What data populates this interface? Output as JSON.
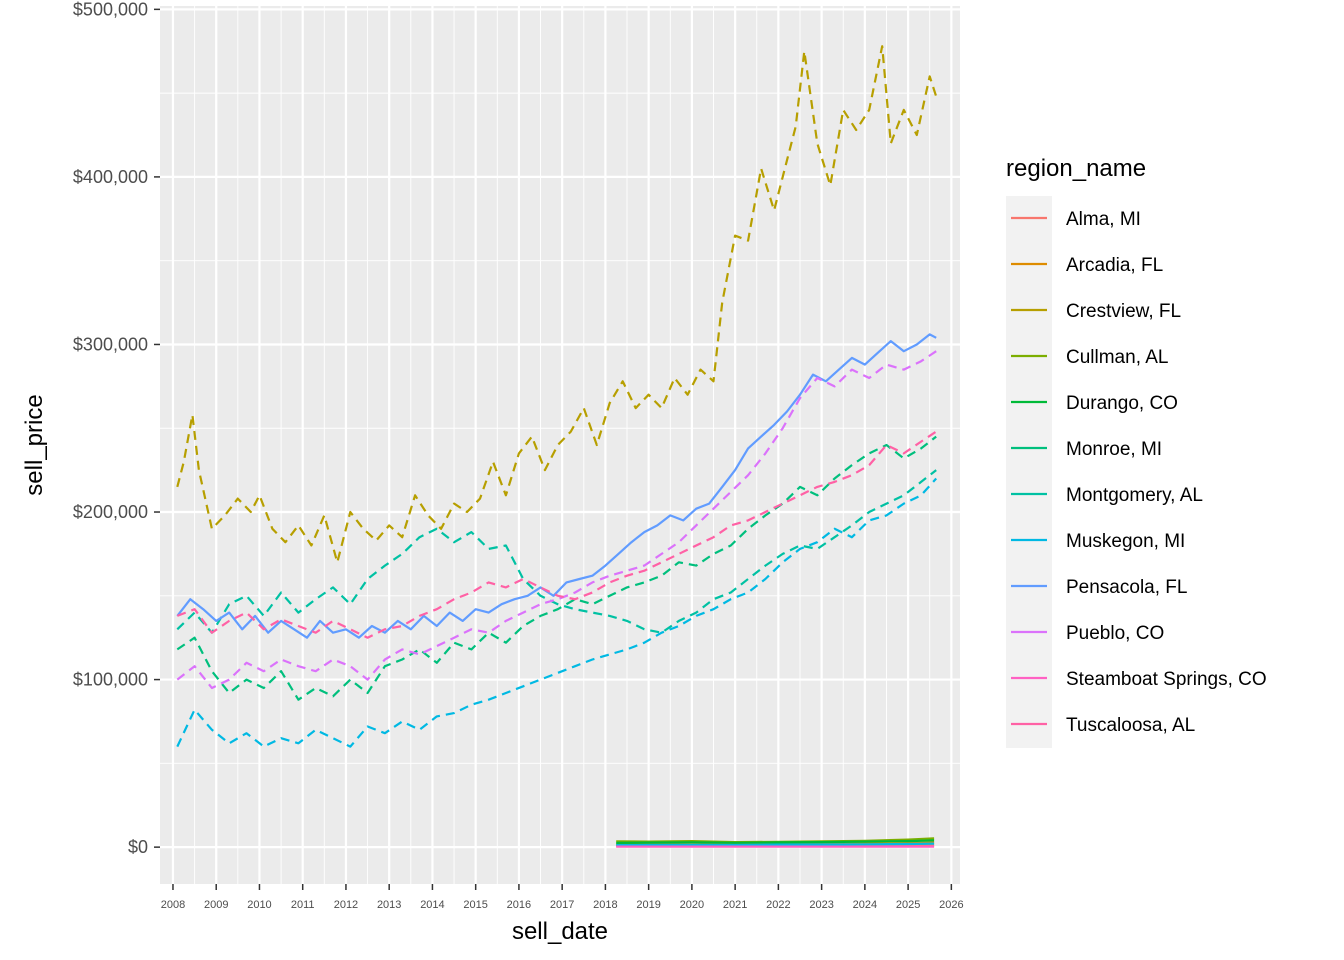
{
  "chart_data": {
    "type": "line",
    "xlabel": "sell_date",
    "ylabel": "sell_price",
    "xlim": [
      2007.7,
      2026.2
    ],
    "ylim": [
      -22000,
      502000
    ],
    "x_ticks": [
      2008,
      2009,
      2010,
      2011,
      2012,
      2013,
      2014,
      2015,
      2016,
      2017,
      2018,
      2019,
      2020,
      2021,
      2022,
      2023,
      2024,
      2025,
      2026
    ],
    "y_ticks": [
      0,
      100000,
      200000,
      300000,
      400000,
      500000
    ],
    "y_tick_labels": [
      "$0",
      "$100,000",
      "$200,000",
      "$300,000",
      "$400,000",
      "$500,000"
    ],
    "grid": true,
    "legend": {
      "title": "region_name",
      "position": "right"
    },
    "series": [
      {
        "name": "Alma, MI",
        "color": "#F8766D",
        "dash": false,
        "x": [
          2018.25,
          2019,
          2020,
          2021,
          2022,
          2023,
          2024,
          2025,
          2025.6
        ],
        "y": [
          600,
          600,
          700,
          700,
          800,
          800,
          900,
          900,
          1000
        ]
      },
      {
        "name": "Arcadia, FL",
        "color": "#DE8C00",
        "dash": false,
        "x": [
          2018.25,
          2019,
          2020,
          2021,
          2022,
          2023,
          2024,
          2025,
          2025.6
        ],
        "y": [
          1500,
          1600,
          1700,
          1600,
          1800,
          1900,
          2100,
          2400,
          2700
        ]
      },
      {
        "name": "Crestview, FL",
        "color": "#B79F00",
        "dash": true,
        "x": [
          2008.1,
          2008.25,
          2008.45,
          2008.6,
          2008.9,
          2009.2,
          2009.5,
          2009.8,
          2010.0,
          2010.3,
          2010.6,
          2010.9,
          2011.2,
          2011.5,
          2011.8,
          2012.1,
          2012.4,
          2012.7,
          2013.0,
          2013.3,
          2013.6,
          2013.9,
          2014.2,
          2014.5,
          2014.8,
          2015.1,
          2015.4,
          2015.7,
          2016.0,
          2016.3,
          2016.6,
          2016.9,
          2017.2,
          2017.5,
          2017.8,
          2018.1,
          2018.4,
          2018.7,
          2019.0,
          2019.3,
          2019.6,
          2019.9,
          2020.2,
          2020.5,
          2020.7,
          2021.0,
          2021.3,
          2021.6,
          2021.9,
          2022.2,
          2022.4,
          2022.6,
          2022.9,
          2023.2,
          2023.5,
          2023.8,
          2024.1,
          2024.4,
          2024.6,
          2024.9,
          2025.2,
          2025.5,
          2025.65
        ],
        "y": [
          215000,
          230000,
          258000,
          225000,
          190000,
          198000,
          208000,
          200000,
          210000,
          190000,
          182000,
          192000,
          180000,
          198000,
          170000,
          200000,
          190000,
          183000,
          192000,
          185000,
          210000,
          198000,
          190000,
          205000,
          200000,
          208000,
          230000,
          210000,
          235000,
          245000,
          225000,
          240000,
          248000,
          262000,
          240000,
          265000,
          278000,
          262000,
          270000,
          262000,
          280000,
          270000,
          285000,
          278000,
          325000,
          365000,
          362000,
          405000,
          380000,
          410000,
          430000,
          475000,
          420000,
          395000,
          440000,
          428000,
          440000,
          478000,
          420000,
          440000,
          425000,
          460000,
          448000
        ]
      },
      {
        "name": "Cullman, AL",
        "color": "#7CAE00",
        "dash": false,
        "x": [
          2018.25,
          2019,
          2020,
          2021,
          2022,
          2023,
          2024,
          2025,
          2025.6
        ],
        "y": [
          3500,
          3300,
          3600,
          3000,
          3200,
          3400,
          3800,
          4500,
          5200
        ]
      },
      {
        "name": "Durango, CO",
        "color": "#00BA38",
        "dash": false,
        "x": [
          2018.25,
          2019,
          2020,
          2021,
          2022,
          2023,
          2024,
          2025,
          2025.6
        ],
        "y": [
          2500,
          2700,
          2900,
          2600,
          2800,
          3000,
          3300,
          3600,
          4000
        ]
      },
      {
        "name": "Monroe, MI",
        "color": "#00BF7D",
        "dash": true,
        "x": [
          2008.1,
          2008.5,
          2008.9,
          2009.3,
          2009.7,
          2010.1,
          2010.5,
          2010.9,
          2011.3,
          2011.7,
          2012.1,
          2012.5,
          2012.9,
          2013.3,
          2013.7,
          2014.1,
          2014.5,
          2014.9,
          2015.3,
          2015.7,
          2016.1,
          2016.5,
          2016.9,
          2017.3,
          2017.7,
          2018.1,
          2018.5,
          2018.9,
          2019.3,
          2019.7,
          2020.1,
          2020.5,
          2020.9,
          2021.3,
          2021.7,
          2022.1,
          2022.5,
          2022.9,
          2023.3,
          2023.7,
          2024.1,
          2024.5,
          2024.9,
          2025.3,
          2025.65
        ],
        "y": [
          118000,
          125000,
          105000,
          92000,
          100000,
          95000,
          105000,
          88000,
          95000,
          90000,
          100000,
          92000,
          108000,
          112000,
          118000,
          110000,
          122000,
          118000,
          128000,
          122000,
          132000,
          138000,
          142000,
          148000,
          145000,
          150000,
          155000,
          158000,
          162000,
          170000,
          168000,
          175000,
          180000,
          190000,
          198000,
          205000,
          215000,
          210000,
          220000,
          228000,
          235000,
          240000,
          232000,
          238000,
          245000
        ]
      },
      {
        "name": "Montgomery, AL",
        "color": "#00C1A3",
        "dash": true,
        "x": [
          2008.1,
          2008.5,
          2008.9,
          2009.3,
          2009.7,
          2010.1,
          2010.5,
          2010.9,
          2011.3,
          2011.7,
          2012.1,
          2012.5,
          2012.9,
          2013.3,
          2013.7,
          2014.1,
          2014.5,
          2014.9,
          2015.3,
          2015.7,
          2016.1,
          2016.5,
          2016.9,
          2017.3,
          2017.7,
          2018.1,
          2018.5,
          2018.9,
          2019.3,
          2019.7,
          2020.1,
          2020.5,
          2020.9,
          2021.3,
          2021.7,
          2022.1,
          2022.5,
          2022.9,
          2023.3,
          2023.7,
          2024.1,
          2024.5,
          2024.9,
          2025.3,
          2025.65
        ],
        "y": [
          130000,
          140000,
          128000,
          145000,
          150000,
          138000,
          152000,
          140000,
          148000,
          155000,
          145000,
          160000,
          168000,
          175000,
          185000,
          190000,
          182000,
          188000,
          178000,
          180000,
          160000,
          150000,
          145000,
          142000,
          140000,
          138000,
          135000,
          130000,
          128000,
          135000,
          140000,
          148000,
          152000,
          160000,
          168000,
          175000,
          180000,
          178000,
          185000,
          192000,
          200000,
          205000,
          210000,
          218000,
          225000
        ]
      },
      {
        "name": "Muskegon, MI",
        "color": "#00B9E3",
        "dash": true,
        "x": [
          2008.1,
          2008.5,
          2008.9,
          2009.3,
          2009.7,
          2010.1,
          2010.5,
          2010.9,
          2011.3,
          2011.7,
          2012.1,
          2012.5,
          2012.9,
          2013.3,
          2013.7,
          2014.1,
          2014.5,
          2014.9,
          2015.3,
          2015.7,
          2016.1,
          2016.5,
          2016.9,
          2017.3,
          2017.7,
          2018.1,
          2018.5,
          2018.9,
          2019.3,
          2019.7,
          2020.1,
          2020.5,
          2020.9,
          2021.3,
          2021.7,
          2022.1,
          2022.5,
          2022.9,
          2023.3,
          2023.7,
          2024.1,
          2024.5,
          2024.9,
          2025.3,
          2025.65
        ],
        "y": [
          60000,
          82000,
          70000,
          62000,
          68000,
          60000,
          65000,
          62000,
          70000,
          65000,
          60000,
          72000,
          68000,
          75000,
          70000,
          78000,
          80000,
          85000,
          88000,
          92000,
          96000,
          100000,
          104000,
          108000,
          112000,
          115000,
          118000,
          122000,
          128000,
          132000,
          138000,
          142000,
          148000,
          152000,
          160000,
          170000,
          178000,
          182000,
          190000,
          185000,
          195000,
          198000,
          205000,
          210000,
          220000
        ]
      },
      {
        "name": "Muskegon, MI",
        "color": "#00B9E3",
        "dash": false,
        "x": [
          2018.25,
          2019,
          2020,
          2021,
          2022,
          2023,
          2024,
          2025,
          2025.6
        ],
        "y": [
          1200,
          1300,
          1400,
          1300,
          1500,
          1600,
          1700,
          1900,
          2100
        ]
      },
      {
        "name": "Pensacola, FL",
        "color": "#619CFF",
        "dash": false,
        "x": [
          2008.1,
          2008.4,
          2008.7,
          2009.0,
          2009.3,
          2009.6,
          2009.9,
          2010.2,
          2010.5,
          2010.8,
          2011.1,
          2011.4,
          2011.7,
          2012.0,
          2012.3,
          2012.6,
          2012.9,
          2013.2,
          2013.5,
          2013.8,
          2014.1,
          2014.4,
          2014.7,
          2015.0,
          2015.3,
          2015.6,
          2015.9,
          2016.2,
          2016.5,
          2016.8,
          2017.1,
          2017.4,
          2017.7,
          2018.0,
          2018.3,
          2018.6,
          2018.9,
          2019.2,
          2019.5,
          2019.8,
          2020.1,
          2020.4,
          2020.7,
          2021.0,
          2021.3,
          2021.6,
          2021.9,
          2022.2,
          2022.5,
          2022.8,
          2023.1,
          2023.4,
          2023.7,
          2024.0,
          2024.3,
          2024.6,
          2024.9,
          2025.2,
          2025.5,
          2025.65
        ],
        "y": [
          138000,
          148000,
          142000,
          135000,
          140000,
          130000,
          138000,
          128000,
          135000,
          130000,
          125000,
          135000,
          128000,
          130000,
          125000,
          132000,
          128000,
          135000,
          130000,
          138000,
          132000,
          140000,
          135000,
          142000,
          140000,
          145000,
          148000,
          150000,
          155000,
          150000,
          158000,
          160000,
          162000,
          168000,
          175000,
          182000,
          188000,
          192000,
          198000,
          195000,
          202000,
          205000,
          215000,
          225000,
          238000,
          245000,
          252000,
          260000,
          270000,
          282000,
          278000,
          285000,
          292000,
          288000,
          295000,
          302000,
          296000,
          300000,
          306000,
          304000
        ]
      },
      {
        "name": "Pueblo, CO",
        "color": "#DB72FB",
        "dash": true,
        "x": [
          2008.1,
          2008.5,
          2008.9,
          2009.3,
          2009.7,
          2010.1,
          2010.5,
          2010.9,
          2011.3,
          2011.7,
          2012.1,
          2012.5,
          2012.9,
          2013.3,
          2013.7,
          2014.1,
          2014.5,
          2014.9,
          2015.3,
          2015.7,
          2016.1,
          2016.5,
          2016.9,
          2017.3,
          2017.7,
          2018.1,
          2018.5,
          2018.9,
          2019.3,
          2019.7,
          2020.1,
          2020.5,
          2020.9,
          2021.3,
          2021.7,
          2022.1,
          2022.5,
          2022.9,
          2023.3,
          2023.7,
          2024.1,
          2024.5,
          2024.9,
          2025.3,
          2025.65
        ],
        "y": [
          100000,
          108000,
          95000,
          100000,
          110000,
          105000,
          112000,
          108000,
          105000,
          112000,
          108000,
          100000,
          112000,
          118000,
          115000,
          120000,
          125000,
          130000,
          128000,
          135000,
          140000,
          145000,
          148000,
          152000,
          158000,
          162000,
          165000,
          168000,
          175000,
          182000,
          192000,
          202000,
          212000,
          222000,
          235000,
          250000,
          268000,
          280000,
          275000,
          285000,
          280000,
          288000,
          285000,
          290000,
          296000
        ]
      },
      {
        "name": "Steamboat Springs, CO",
        "color": "#FF61C3",
        "dash": false,
        "x": [
          2018.25,
          2019,
          2020,
          2021,
          2022,
          2023,
          2024,
          2025,
          2025.6
        ],
        "y": [
          300,
          300,
          300,
          300,
          300,
          300,
          300,
          300,
          300
        ]
      },
      {
        "name": "Tuscaloosa, AL",
        "color": "#FF61A5",
        "dash": true,
        "x": [
          2008.1,
          2008.5,
          2008.9,
          2009.3,
          2009.7,
          2010.1,
          2010.5,
          2010.9,
          2011.3,
          2011.7,
          2012.1,
          2012.5,
          2012.9,
          2013.3,
          2013.7,
          2014.1,
          2014.5,
          2014.9,
          2015.3,
          2015.7,
          2016.1,
          2016.5,
          2016.9,
          2017.3,
          2017.7,
          2018.1,
          2018.5,
          2018.9,
          2019.3,
          2019.7,
          2020.1,
          2020.5,
          2020.9,
          2021.3,
          2021.7,
          2022.1,
          2022.5,
          2022.9,
          2023.3,
          2023.7,
          2024.1,
          2024.5,
          2024.9,
          2025.3,
          2025.65
        ],
        "y": [
          138000,
          142000,
          128000,
          135000,
          140000,
          130000,
          136000,
          132000,
          128000,
          135000,
          130000,
          125000,
          130000,
          132000,
          138000,
          142000,
          148000,
          152000,
          158000,
          155000,
          160000,
          155000,
          150000,
          148000,
          152000,
          158000,
          162000,
          165000,
          170000,
          175000,
          180000,
          185000,
          192000,
          195000,
          200000,
          205000,
          210000,
          215000,
          218000,
          222000,
          228000,
          240000,
          235000,
          242000,
          248000
        ]
      }
    ]
  }
}
